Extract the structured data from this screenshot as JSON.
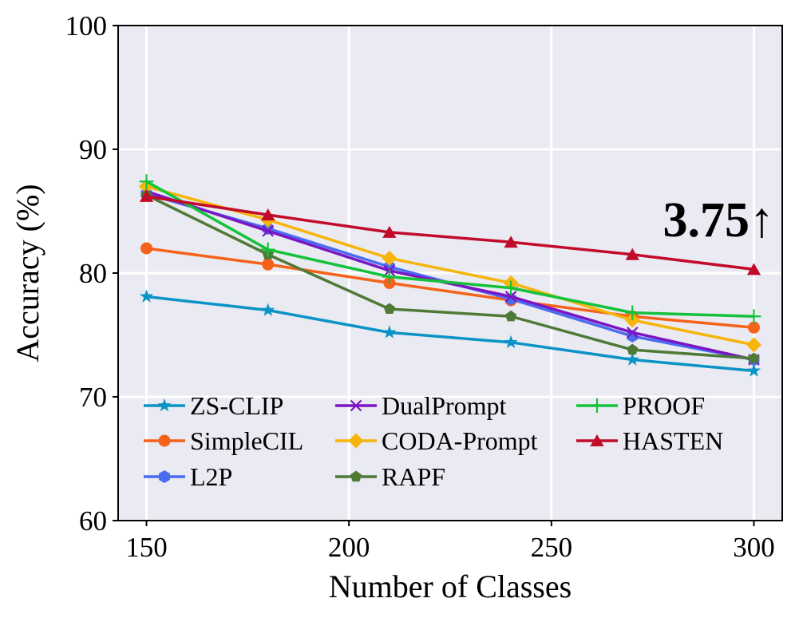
{
  "chart_data": {
    "type": "line",
    "xlabel": "Number of Classes",
    "ylabel": "Accuracy (%)",
    "xlim": [
      143,
      307
    ],
    "ylim": [
      60,
      100
    ],
    "x": [
      150,
      180,
      210,
      240,
      270,
      300
    ],
    "xticks": [
      "150",
      "200",
      "250",
      "300"
    ],
    "xtick_values": [
      150,
      200,
      250,
      300
    ],
    "yticks": [
      "60",
      "70",
      "80",
      "90",
      "100"
    ],
    "ytick_values": [
      60,
      70,
      80,
      90,
      100
    ],
    "grid": true,
    "legend_position": "lower-left",
    "annotation": "3.75↑",
    "series": [
      {
        "name": "ZS-CLIP",
        "color": "#0a93c6",
        "marker": "star",
        "values": [
          78.1,
          77.0,
          75.2,
          74.4,
          73.0,
          72.1
        ]
      },
      {
        "name": "SimpleCIL",
        "color": "#f5621a",
        "marker": "circle",
        "values": [
          82.0,
          80.7,
          79.2,
          77.8,
          76.5,
          75.6
        ]
      },
      {
        "name": "L2P",
        "color": "#4a6cf0",
        "marker": "hexagon",
        "values": [
          86.4,
          83.6,
          80.5,
          77.9,
          74.9,
          73.0
        ]
      },
      {
        "name": "DualPrompt",
        "color": "#7a16c2",
        "marker": "x",
        "values": [
          86.6,
          83.4,
          80.2,
          78.1,
          75.2,
          73.0
        ]
      },
      {
        "name": "CODA-Prompt",
        "color": "#f5b50a",
        "marker": "diamond",
        "values": [
          87.0,
          84.3,
          81.2,
          79.2,
          76.2,
          74.2
        ]
      },
      {
        "name": "RAPF",
        "color": "#4f7a36",
        "marker": "pentagon",
        "values": [
          86.3,
          81.5,
          77.1,
          76.5,
          73.8,
          73.1
        ]
      },
      {
        "name": "PROOF",
        "color": "#14c23a",
        "marker": "plus",
        "values": [
          87.4,
          81.9,
          79.7,
          78.8,
          76.8,
          76.5
        ]
      },
      {
        "name": "HASTEN",
        "color": "#c20a2a",
        "marker": "triangle",
        "values": [
          86.2,
          84.7,
          83.3,
          82.5,
          81.5,
          80.3
        ]
      }
    ]
  }
}
